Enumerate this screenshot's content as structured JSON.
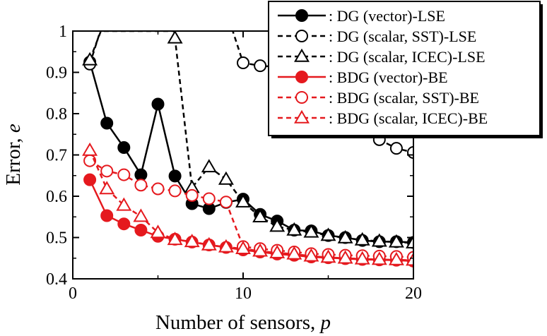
{
  "chart_data": {
    "type": "line",
    "xlabel": "Number of sensors, p",
    "xlabel_prefix": "Number of sensors, ",
    "xlabel_var": "p",
    "ylabel": "Error, e",
    "ylabel_prefix": "Error, ",
    "ylabel_var": "e",
    "xlim": [
      0,
      20
    ],
    "ylim": [
      0.4,
      1.0
    ],
    "xticks": [
      0,
      10,
      20
    ],
    "yticks": [
      0.4,
      0.5,
      0.6,
      0.7,
      0.8,
      0.9,
      1.0
    ],
    "ytick_labels": [
      "0.4",
      "0.5",
      "0.6",
      "0.7",
      "0.8",
      "0.9",
      "1"
    ],
    "xtick_labels": [
      "0",
      "10",
      "20"
    ],
    "grid": false,
    "legend_position": "top-right",
    "series": [
      {
        "name": ": DG (vector)-LSE",
        "color": "#000000",
        "dash": "solid",
        "marker": "circle-filled",
        "x": [
          1,
          2,
          3,
          4,
          5,
          6,
          7,
          8,
          9,
          10,
          11,
          12,
          13,
          14,
          15,
          16,
          17,
          18,
          19,
          20
        ],
        "y": [
          0.925,
          0.777,
          0.718,
          0.652,
          0.823,
          0.649,
          0.582,
          0.57,
          0.585,
          0.593,
          0.556,
          0.54,
          0.518,
          0.516,
          0.505,
          0.5,
          0.493,
          0.49,
          0.49,
          0.488
        ]
      },
      {
        "name": ": DG (scalar, SST)-LSE",
        "color": "#000000",
        "dash": "dashed",
        "marker": "circle-open",
        "x": [
          1,
          2,
          9,
          10,
          11,
          12,
          18,
          19,
          20
        ],
        "y": [
          0.92,
          1.05,
          1.05,
          0.923,
          0.916,
          0.913,
          0.737,
          0.716,
          0.706
        ]
      },
      {
        "name": ": DG (scalar, ICEC)-LSE",
        "color": "#000000",
        "dash": "dashed",
        "marker": "triangle-open",
        "x": [
          1,
          1.65,
          5.95,
          6,
          7,
          8,
          9,
          10,
          11,
          12,
          13,
          14,
          15,
          16,
          17,
          18,
          19,
          20
        ],
        "y": [
          0.93,
          1.0,
          1.0,
          0.983,
          0.621,
          0.671,
          0.641,
          0.586,
          0.55,
          0.527,
          0.518,
          0.513,
          0.505,
          0.499,
          0.494,
          0.491,
          0.489,
          0.487
        ]
      },
      {
        "name": ": BDG (vector)-BE",
        "color": "#e5191e",
        "dash": "solid",
        "marker": "circle-filled",
        "x": [
          1,
          2,
          3,
          4,
          5,
          6,
          7,
          8,
          9,
          10,
          11,
          12,
          13,
          14,
          15,
          16,
          17,
          18,
          19,
          20
        ],
        "y": [
          0.64,
          0.553,
          0.533,
          0.518,
          0.503,
          0.496,
          0.489,
          0.482,
          0.476,
          0.47,
          0.465,
          0.46,
          0.457,
          0.453,
          0.451,
          0.449,
          0.447,
          0.446,
          0.445,
          0.443
        ]
      },
      {
        "name": ": BDG (scalar, SST)-BE",
        "color": "#e5191e",
        "dash": "dashed",
        "marker": "circle-open",
        "x": [
          1,
          2,
          3,
          4,
          5,
          6,
          7,
          8,
          9,
          10,
          11,
          12,
          13,
          14,
          15,
          16,
          17,
          18,
          19,
          20
        ],
        "y": [
          0.686,
          0.661,
          0.652,
          0.627,
          0.618,
          0.613,
          0.602,
          0.594,
          0.586,
          0.478,
          0.473,
          0.469,
          0.465,
          0.461,
          0.459,
          0.457,
          0.456,
          0.455,
          0.454,
          0.452
        ]
      },
      {
        "name": ": BDG (scalar, ICEC)-BE",
        "color": "#e5191e",
        "dash": "dashed",
        "marker": "triangle-open",
        "x": [
          1,
          2,
          3,
          4,
          5,
          6,
          7,
          8,
          9,
          10,
          11,
          12,
          13,
          14,
          15,
          16,
          17,
          18,
          19,
          20
        ],
        "y": [
          0.711,
          0.618,
          0.578,
          0.551,
          0.512,
          0.495,
          0.49,
          0.482,
          0.477,
          0.473,
          0.467,
          0.463,
          0.46,
          0.455,
          0.452,
          0.45,
          0.448,
          0.447,
          0.446,
          0.445
        ]
      }
    ]
  }
}
